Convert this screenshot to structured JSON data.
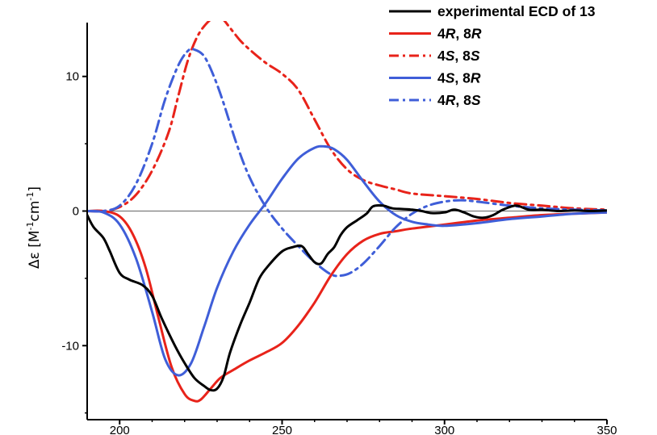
{
  "chart_data": {
    "type": "line",
    "xlabel": "",
    "ylabel_prefix": "Δε [M",
    "ylabel_sup1": "-1",
    "ylabel_mid": "cm",
    "ylabel_sup2": "-1",
    "ylabel_suffix": "]",
    "xlim": [
      190,
      350
    ],
    "ylim": [
      -15.5,
      14
    ],
    "x_ticks": [
      200,
      250,
      300,
      350
    ],
    "y_ticks": [
      10,
      0,
      -10
    ],
    "grid": false,
    "zero_line": true,
    "legend_position": "top-right",
    "legend": [
      {
        "parts": [
          {
            "text": "experimental ECD of 13",
            "italic": false
          }
        ]
      },
      {
        "parts": [
          {
            "text": "4",
            "italic": false
          },
          {
            "text": "R",
            "italic": true
          },
          {
            "text": ", 8",
            "italic": false
          },
          {
            "text": "R",
            "italic": true
          }
        ]
      },
      {
        "parts": [
          {
            "text": "4",
            "italic": false
          },
          {
            "text": "S",
            "italic": true
          },
          {
            "text": ", 8",
            "italic": false
          },
          {
            "text": "S",
            "italic": true
          }
        ]
      },
      {
        "parts": [
          {
            "text": "4",
            "italic": false
          },
          {
            "text": "S",
            "italic": true
          },
          {
            "text": ", 8",
            "italic": false
          },
          {
            "text": "R",
            "italic": true
          }
        ]
      },
      {
        "parts": [
          {
            "text": "4",
            "italic": false
          },
          {
            "text": "R",
            "italic": true
          },
          {
            "text": ", 8",
            "italic": false
          },
          {
            "text": "S",
            "italic": true
          }
        ]
      }
    ],
    "series": [
      {
        "name": "experimental ECD of 13",
        "color": "#000000",
        "dash": "solid",
        "x": [
          190,
          192,
          195,
          197,
          200,
          203,
          207,
          210,
          213,
          217,
          220,
          223,
          226,
          228,
          230,
          232,
          234,
          237,
          240,
          243,
          246,
          250,
          253,
          256,
          258,
          260,
          262,
          264,
          266,
          268,
          270,
          273,
          276,
          278,
          281,
          284,
          287,
          290,
          293,
          296,
          300,
          303,
          306,
          309,
          312,
          315,
          318,
          322,
          326,
          330,
          335,
          340,
          345,
          350
        ],
        "y": [
          -0.3,
          -1.2,
          -2.0,
          -3.0,
          -4.6,
          -5.1,
          -5.5,
          -6.3,
          -8.0,
          -10.0,
          -11.3,
          -12.4,
          -13.0,
          -13.3,
          -13.2,
          -12.3,
          -10.5,
          -8.5,
          -6.8,
          -5.0,
          -4.0,
          -3.0,
          -2.7,
          -2.6,
          -3.2,
          -3.8,
          -3.9,
          -3.2,
          -2.7,
          -1.8,
          -1.2,
          -0.7,
          -0.2,
          0.35,
          0.4,
          0.2,
          0.15,
          0.1,
          0.0,
          -0.15,
          -0.1,
          0.1,
          -0.1,
          -0.4,
          -0.5,
          -0.3,
          0.1,
          0.4,
          0.1,
          0.1,
          0.0,
          0.05,
          0.0,
          0.05
        ]
      },
      {
        "name": "4R, 8R",
        "color": "#e8231a",
        "dash": "solid",
        "x": [
          190,
          195,
          200,
          204,
          208,
          212,
          216,
          220,
          223,
          225,
          228,
          231,
          235,
          240,
          245,
          250,
          255,
          260,
          265,
          270,
          275,
          280,
          285,
          290,
          300,
          310,
          320,
          330,
          340,
          350
        ],
        "y": [
          0,
          0,
          -0.4,
          -1.7,
          -4.2,
          -8.0,
          -11.6,
          -13.6,
          -14.1,
          -14.0,
          -13.2,
          -12.4,
          -11.8,
          -11.1,
          -10.5,
          -9.8,
          -8.5,
          -6.8,
          -4.8,
          -3.2,
          -2.2,
          -1.7,
          -1.5,
          -1.3,
          -1.0,
          -0.7,
          -0.5,
          -0.3,
          -0.2,
          -0.1
        ]
      },
      {
        "name": "4S, 8S",
        "color": "#e8231a",
        "dash": "dashdot",
        "x": [
          190,
          195,
          200,
          205,
          210,
          215,
          218,
          221,
          224,
          227,
          230,
          232,
          234,
          237,
          240,
          245,
          250,
          255,
          260,
          265,
          270,
          275,
          280,
          285,
          290,
          300,
          310,
          320,
          330,
          340,
          350
        ],
        "y": [
          0,
          0,
          0.3,
          1.2,
          3.0,
          5.8,
          8.5,
          11.2,
          13.0,
          14.0,
          14.5,
          14.2,
          13.6,
          12.7,
          12.0,
          11.0,
          10.2,
          9.0,
          6.8,
          4.6,
          3.1,
          2.3,
          1.9,
          1.6,
          1.3,
          1.1,
          0.9,
          0.6,
          0.4,
          0.2,
          0.1
        ]
      },
      {
        "name": "4S, 8R",
        "color": "#3f5ed8",
        "dash": "solid",
        "x": [
          190,
          195,
          200,
          205,
          210,
          214,
          218,
          222,
          226,
          230,
          235,
          240,
          245,
          250,
          255,
          260,
          263,
          266,
          270,
          275,
          280,
          285,
          290,
          295,
          300,
          310,
          320,
          330,
          340,
          350
        ],
        "y": [
          0,
          -0.1,
          -1.0,
          -3.5,
          -7.5,
          -11.0,
          -12.2,
          -11.3,
          -8.6,
          -5.7,
          -3.0,
          -1.0,
          0.6,
          2.4,
          3.9,
          4.7,
          4.8,
          4.6,
          3.8,
          2.2,
          0.7,
          -0.3,
          -0.8,
          -1.0,
          -1.1,
          -0.9,
          -0.6,
          -0.4,
          -0.2,
          -0.1
        ]
      },
      {
        "name": "4R, 8S",
        "color": "#3f5ed8",
        "dash": "dashdot",
        "x": [
          190,
          195,
          200,
          205,
          210,
          214,
          218,
          221,
          223,
          226,
          229,
          232,
          236,
          240,
          245,
          250,
          255,
          260,
          265,
          268,
          271,
          275,
          280,
          285,
          290,
          295,
          300,
          305,
          310,
          320,
          330,
          340,
          350
        ],
        "y": [
          0,
          0,
          0.4,
          2.0,
          5.0,
          8.3,
          10.8,
          11.9,
          12.0,
          11.5,
          10.0,
          8.0,
          5.0,
          2.5,
          0.3,
          -1.3,
          -2.6,
          -3.8,
          -4.7,
          -4.8,
          -4.6,
          -3.9,
          -2.6,
          -1.2,
          -0.2,
          0.4,
          0.7,
          0.8,
          0.7,
          0.4,
          0.2,
          0.1,
          0.05
        ]
      }
    ]
  }
}
